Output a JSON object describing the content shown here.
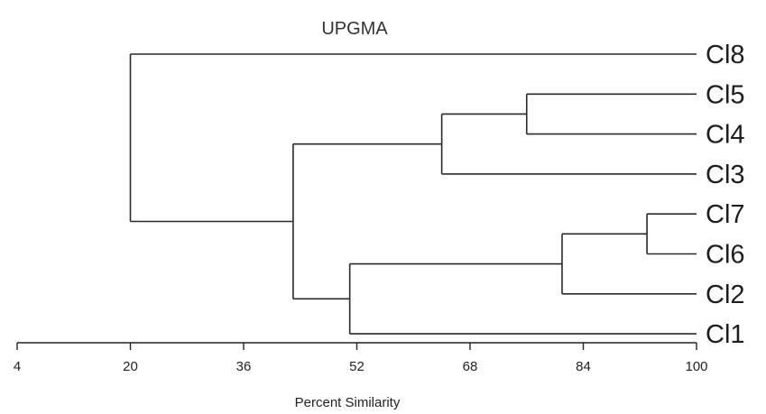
{
  "title": "UPGMA",
  "axis": {
    "label": "Percent Similarity",
    "ticks": [
      4,
      20,
      36,
      52,
      68,
      84,
      100
    ],
    "range": [
      4,
      100
    ]
  },
  "leaves": [
    "Cl8",
    "Cl5",
    "Cl4",
    "Cl3",
    "Cl7",
    "Cl6",
    "Cl2",
    "Cl1"
  ],
  "merges": [
    {
      "id": "n1",
      "children": [
        "Cl5",
        "Cl4"
      ],
      "similarity": 76
    },
    {
      "id": "n2",
      "children": [
        "n1",
        "Cl3"
      ],
      "similarity": 64
    },
    {
      "id": "n3",
      "children": [
        "Cl7",
        "Cl6"
      ],
      "similarity": 93
    },
    {
      "id": "n4",
      "children": [
        "n3",
        "Cl2"
      ],
      "similarity": 81
    },
    {
      "id": "n5",
      "children": [
        "n4",
        "Cl1"
      ],
      "similarity": 51
    },
    {
      "id": "n6",
      "children": [
        "n2",
        "n5"
      ],
      "similarity": 43
    },
    {
      "id": "n7",
      "children": [
        "Cl8",
        "n6"
      ],
      "similarity": 20
    }
  ],
  "colors": {
    "line": "#2a2a2a",
    "text": "#1e1e1e"
  }
}
